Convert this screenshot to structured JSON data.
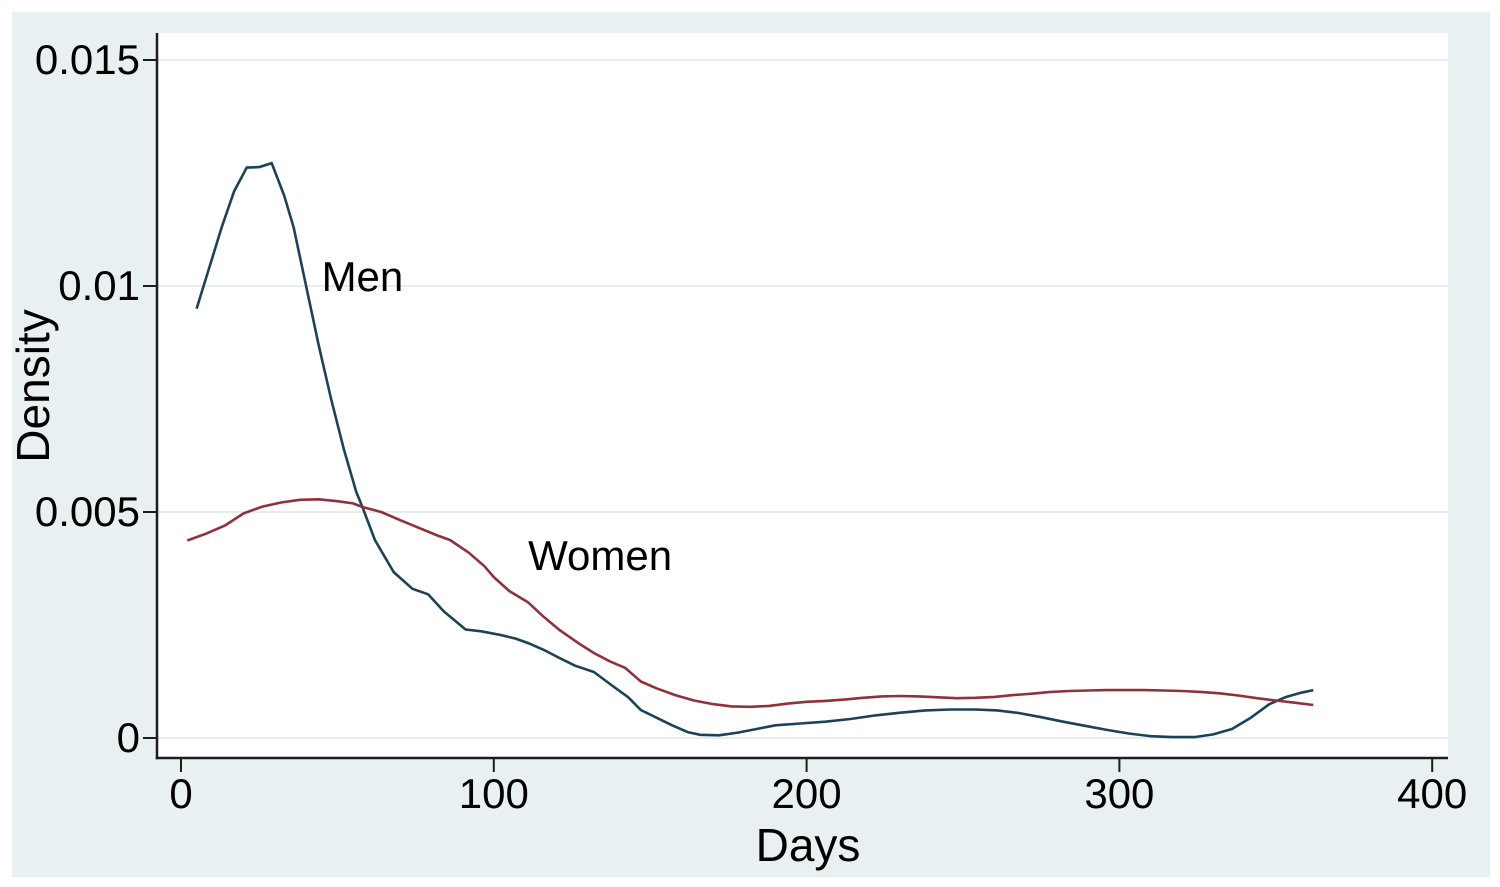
{
  "figure": {
    "background_color": "#e9f0f2",
    "plot_area_color": "#ffffff",
    "gridline_color": "#e6edef",
    "axis_color": "#1c1c1c",
    "text_color": "#000000"
  },
  "chart_data": {
    "type": "line",
    "title": "",
    "xlabel": "Days",
    "ylabel": "Density",
    "xlim": [
      0,
      400
    ],
    "ylim": [
      0,
      0.015
    ],
    "grid": true,
    "legend_position": "inline-annotations",
    "x_ticks": [
      0,
      100,
      200,
      300,
      400
    ],
    "x_tick_labels": [
      "0",
      "100",
      "200",
      "300",
      "400"
    ],
    "y_ticks": [
      0,
      0.005,
      0.01,
      0.015
    ],
    "y_tick_labels": [
      "0",
      "0.005",
      "0.01",
      "0.015"
    ],
    "series": [
      {
        "name": "Men",
        "color": "#1d4257",
        "x": [
          5,
          9,
          13,
          17,
          21,
          25,
          29,
          33,
          36,
          40,
          44,
          48,
          52,
          56,
          58,
          62,
          68,
          74,
          79,
          84,
          91,
          96,
          102,
          107,
          111,
          116,
          121,
          126,
          132,
          138,
          143,
          147,
          152,
          157,
          162,
          166,
          172,
          178,
          184,
          190,
          198,
          206,
          214,
          222,
          230,
          238,
          246,
          254,
          261,
          268,
          275,
          282,
          289,
          296,
          303,
          310,
          317,
          324,
          330,
          336,
          342,
          348,
          353,
          358,
          362
        ],
        "y": [
          0.0095,
          0.0104,
          0.0113,
          0.0121,
          0.01262,
          0.01263,
          0.01272,
          0.012,
          0.0113,
          0.01,
          0.0087,
          0.0075,
          0.0064,
          0.00545,
          0.00511,
          0.00438,
          0.00367,
          0.0033,
          0.00318,
          0.0028,
          0.0024,
          0.00236,
          0.00228,
          0.0022,
          0.0021,
          0.00195,
          0.00177,
          0.0016,
          0.00146,
          0.00115,
          0.0009,
          0.00062,
          0.00045,
          0.00028,
          0.00013,
          7e-05,
          6e-05,
          0.00012,
          0.0002,
          0.00028,
          0.00032,
          0.00036,
          0.00042,
          0.0005,
          0.00056,
          0.00061,
          0.00063,
          0.00063,
          0.00061,
          0.00055,
          0.00046,
          0.00036,
          0.00027,
          0.00018,
          0.0001,
          4e-05,
          2e-05,
          2e-05,
          8e-05,
          0.0002,
          0.00045,
          0.00075,
          0.0009,
          0.001,
          0.00106
        ]
      },
      {
        "name": "Women",
        "color": "#8f323b",
        "x": [
          2,
          8,
          14,
          20,
          26,
          32,
          38,
          44,
          50,
          55,
          58,
          64,
          70,
          76,
          82,
          86,
          92,
          97,
          100,
          105,
          111,
          116,
          121,
          127,
          132,
          137,
          142,
          147,
          152,
          158,
          164,
          170,
          176,
          182,
          188,
          194,
          200,
          206,
          212,
          218,
          224,
          230,
          236,
          242,
          248,
          254,
          260,
          266,
          272,
          278,
          284,
          290,
          296,
          302,
          308,
          314,
          320,
          326,
          332,
          338,
          344,
          350,
          356,
          362
        ],
        "y": [
          0.00437,
          0.00452,
          0.0047,
          0.00497,
          0.00512,
          0.00521,
          0.00527,
          0.00528,
          0.00524,
          0.00519,
          0.00511,
          0.005,
          0.00482,
          0.00465,
          0.00448,
          0.00438,
          0.0041,
          0.0038,
          0.00356,
          0.00325,
          0.003,
          0.00268,
          0.00239,
          0.0021,
          0.00188,
          0.0017,
          0.00155,
          0.00125,
          0.0011,
          0.00095,
          0.00083,
          0.00075,
          0.0007,
          0.00069,
          0.00071,
          0.00076,
          0.0008,
          0.00082,
          0.00085,
          0.00089,
          0.00092,
          0.00093,
          0.00092,
          0.0009,
          0.00088,
          0.00089,
          0.00091,
          0.00095,
          0.00098,
          0.00102,
          0.00104,
          0.00105,
          0.00106,
          0.00106,
          0.00106,
          0.00105,
          0.00104,
          0.00102,
          0.00099,
          0.00094,
          0.00088,
          0.00083,
          0.00078,
          0.00073
        ]
      }
    ],
    "annotations": [
      {
        "text": "Men",
        "x": 58,
        "y": 0.0102
      },
      {
        "text": "Women",
        "x": 134,
        "y": 0.00403
      }
    ]
  }
}
